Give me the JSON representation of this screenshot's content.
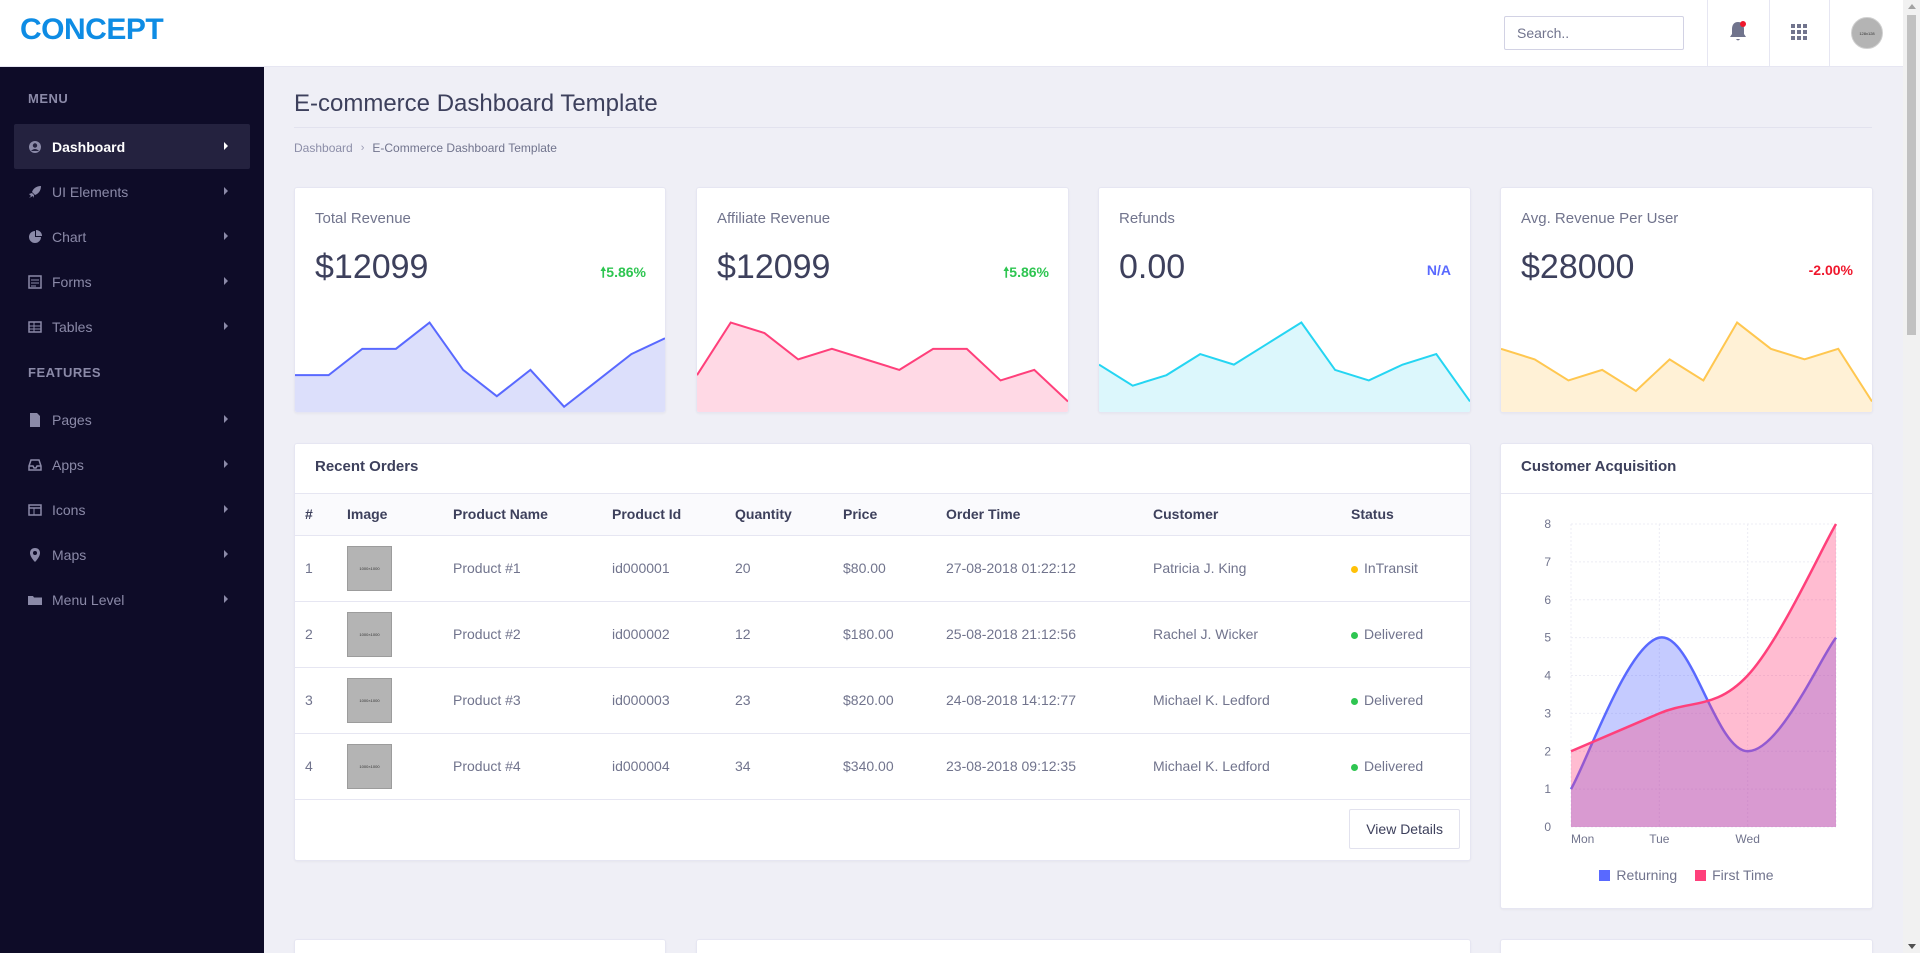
{
  "header": {
    "brand": "CONCEPT",
    "search_placeholder": "Search..",
    "avatar_alt": "128x128"
  },
  "sidebar": {
    "section_menu": "MENU",
    "section_features": "FEATURES",
    "items": [
      {
        "label": "Dashboard",
        "icon": "user-circle-icon"
      },
      {
        "label": "UI Elements",
        "icon": "rocket-icon"
      },
      {
        "label": "Chart",
        "icon": "pie-chart-icon"
      },
      {
        "label": "Forms",
        "icon": "form-icon"
      },
      {
        "label": "Tables",
        "icon": "table-icon"
      },
      {
        "label": "Pages",
        "icon": "file-icon"
      },
      {
        "label": "Apps",
        "icon": "inbox-icon"
      },
      {
        "label": "Icons",
        "icon": "columns-icon"
      },
      {
        "label": "Maps",
        "icon": "map-marker-icon"
      },
      {
        "label": "Menu Level",
        "icon": "folder-icon"
      }
    ]
  },
  "page": {
    "title": "E-commerce Dashboard Template",
    "breadcrumb": [
      "Dashboard",
      "E-Commerce Dashboard Template"
    ]
  },
  "kpis": [
    {
      "label": "Total Revenue",
      "value": "$12099",
      "change": "5.86%",
      "trend": "up",
      "change_color": "#2ec551",
      "line_color": "#5969ff",
      "fill_color": "#dcdffb",
      "spark": [
        5,
        5,
        10,
        10,
        15,
        6,
        1,
        6,
        -1,
        4,
        9,
        12
      ]
    },
    {
      "label": "Affiliate Revenue",
      "value": "$12099",
      "change": "5.86%",
      "trend": "up",
      "change_color": "#2ec551",
      "line_color": "#ff407b",
      "fill_color": "#ffd9e5",
      "spark": [
        5,
        15,
        13,
        8,
        10,
        8,
        6,
        10,
        10,
        4,
        6,
        0
      ]
    },
    {
      "label": "Refunds",
      "value": "0.00",
      "change": "N/A",
      "trend": "none",
      "change_color": "#5969ff",
      "line_color": "#25d5f2",
      "fill_color": "#dcf7fc",
      "spark": [
        7,
        3,
        5,
        9,
        7,
        11,
        15,
        6,
        4,
        7,
        9,
        0
      ]
    },
    {
      "label": "Avg. Revenue Per User",
      "value": "$28000",
      "change": "-2.00%",
      "trend": "down",
      "change_color": "#ef172c",
      "line_color": "#ffc750",
      "fill_color": "#fff1d6",
      "spark": [
        10,
        8,
        4,
        6,
        2,
        8,
        4,
        15,
        10,
        8,
        10,
        0
      ]
    }
  ],
  "orders": {
    "title": "Recent Orders",
    "columns": [
      "#",
      "Image",
      "Product Name",
      "Product Id",
      "Quantity",
      "Price",
      "Order Time",
      "Customer",
      "Status"
    ],
    "rows": [
      {
        "num": "1",
        "img": "1000×1000",
        "product": "Product #1",
        "id": "id000001",
        "qty": "20",
        "price": "$80.00",
        "time": "27-08-2018 01:22:12",
        "customer": "Patricia J. King",
        "status": "InTransit",
        "status_color": "#ffc108"
      },
      {
        "num": "2",
        "img": "1000×1000",
        "product": "Product #2",
        "id": "id000002",
        "qty": "12",
        "price": "$180.00",
        "time": "25-08-2018 21:12:56",
        "customer": "Rachel J. Wicker",
        "status": "Delivered",
        "status_color": "#2ec551"
      },
      {
        "num": "3",
        "img": "1000×1000",
        "product": "Product #3",
        "id": "id000003",
        "qty": "23",
        "price": "$820.00",
        "time": "24-08-2018 14:12:77",
        "customer": "Michael K. Ledford",
        "status": "Delivered",
        "status_color": "#2ec551"
      },
      {
        "num": "4",
        "img": "1000×1000",
        "product": "Product #4",
        "id": "id000004",
        "qty": "34",
        "price": "$340.00",
        "time": "23-08-2018 09:12:35",
        "customer": "Michael K. Ledford",
        "status": "Delivered",
        "status_color": "#2ec551"
      }
    ],
    "view_button": "View Details"
  },
  "chart_data": {
    "type": "area",
    "title": "Customer Acquisition",
    "categories": [
      "Mon",
      "Tue",
      "Wed"
    ],
    "x": [
      0,
      1,
      2,
      3
    ],
    "ylim": [
      0,
      8
    ],
    "yticks": [
      0,
      1,
      2,
      3,
      4,
      5,
      6,
      7,
      8
    ],
    "grid": true,
    "legend_position": "bottom",
    "series": [
      {
        "name": "Returning",
        "values": [
          1,
          5,
          2,
          5
        ],
        "color": "#5969ff"
      },
      {
        "name": "First Time",
        "values": [
          2,
          3,
          4,
          8
        ],
        "color": "#ff407b"
      }
    ]
  }
}
